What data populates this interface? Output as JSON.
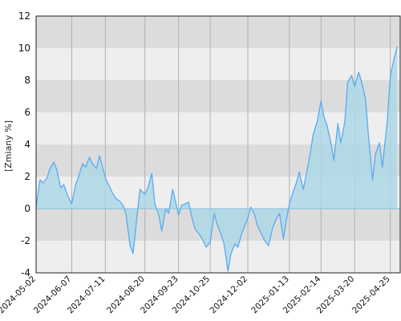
{
  "chart_data": {
    "type": "area",
    "ylabel": "[Zmiany %]",
    "ylim": [
      -4,
      12
    ],
    "yticks": [
      12,
      10,
      8,
      6,
      4,
      2,
      0,
      -2,
      -4
    ],
    "xlim": [
      "2024-05-02",
      "2025-05-05"
    ],
    "xticks": [
      "2024-05-02",
      "2024-06-07",
      "2024-07-11",
      "2024-08-20",
      "2024-09-23",
      "2024-10-25",
      "2024-12-02",
      "2025-01-13",
      "2025-02-14",
      "2025-03-20",
      "2025-04-25"
    ],
    "grid": true,
    "legend": "none",
    "colors": {
      "line": "#5aaaf0",
      "fill": "#add8e6",
      "band_dark": "#dcdcdc",
      "band_light": "#eeeeee",
      "gridline": "#b0b0b0",
      "zero": "#7fbfe0"
    },
    "series": [
      {
        "x": [
          "2024-05-02",
          "2024-05-06",
          "2024-05-09",
          "2024-05-13",
          "2024-05-16",
          "2024-05-20",
          "2024-05-23",
          "2024-05-27",
          "2024-05-30",
          "2024-06-03",
          "2024-06-07",
          "2024-06-11",
          "2024-06-14",
          "2024-06-18",
          "2024-06-21",
          "2024-06-25",
          "2024-06-28",
          "2024-07-02",
          "2024-07-05",
          "2024-07-09",
          "2024-07-11",
          "2024-07-15",
          "2024-07-18",
          "2024-07-22",
          "2024-07-25",
          "2024-07-29",
          "2024-08-01",
          "2024-08-05",
          "2024-08-08",
          "2024-08-12",
          "2024-08-15",
          "2024-08-20",
          "2024-08-23",
          "2024-08-27",
          "2024-08-30",
          "2024-09-03",
          "2024-09-06",
          "2024-09-10",
          "2024-09-13",
          "2024-09-17",
          "2024-09-20",
          "2024-09-23",
          "2024-09-26",
          "2024-09-30",
          "2024-10-03",
          "2024-10-07",
          "2024-10-10",
          "2024-10-14",
          "2024-10-17",
          "2024-10-21",
          "2024-10-25",
          "2024-10-29",
          "2024-11-01",
          "2024-11-05",
          "2024-11-08",
          "2024-11-12",
          "2024-11-15",
          "2024-11-19",
          "2024-11-22",
          "2024-11-26",
          "2024-12-02",
          "2024-12-05",
          "2024-12-09",
          "2024-12-12",
          "2024-12-16",
          "2024-12-19",
          "2024-12-23",
          "2024-12-27",
          "2024-12-31",
          "2025-01-03",
          "2025-01-07",
          "2025-01-10",
          "2025-01-13",
          "2025-01-16",
          "2025-01-20",
          "2025-01-23",
          "2025-01-27",
          "2025-01-30",
          "2025-02-03",
          "2025-02-06",
          "2025-02-10",
          "2025-02-14",
          "2025-02-17",
          "2025-02-20",
          "2025-02-24",
          "2025-02-27",
          "2025-03-03",
          "2025-03-06",
          "2025-03-10",
          "2025-03-13",
          "2025-03-17",
          "2025-03-20",
          "2025-03-24",
          "2025-03-27",
          "2025-03-31",
          "2025-04-03",
          "2025-04-07",
          "2025-04-10",
          "2025-04-14",
          "2025-04-17",
          "2025-04-22",
          "2025-04-25",
          "2025-04-29",
          "2025-05-02"
        ],
        "y": [
          0.1,
          1.8,
          1.6,
          1.9,
          2.5,
          2.9,
          2.4,
          1.3,
          1.5,
          0.8,
          0.3,
          1.5,
          2.0,
          2.8,
          2.6,
          3.2,
          2.8,
          2.5,
          3.3,
          2.4,
          1.9,
          1.4,
          1.0,
          0.6,
          0.5,
          0.2,
          -0.4,
          -2.3,
          -2.8,
          -0.5,
          1.2,
          0.9,
          1.3,
          2.2,
          0.3,
          -0.4,
          -1.4,
          0.0,
          -0.3,
          1.2,
          0.4,
          -0.4,
          0.2,
          0.3,
          0.4,
          -0.7,
          -1.3,
          -1.6,
          -1.9,
          -2.4,
          -2.1,
          -0.3,
          -1.0,
          -1.6,
          -2.2,
          -3.9,
          -2.8,
          -2.2,
          -2.4,
          -1.5,
          -0.6,
          0.1,
          -0.4,
          -1.1,
          -1.6,
          -2.0,
          -2.3,
          -1.2,
          -0.6,
          -0.3,
          -1.9,
          -0.7,
          0.3,
          0.9,
          1.6,
          2.3,
          1.2,
          2.1,
          3.4,
          4.6,
          5.4,
          6.7,
          5.7,
          5.2,
          4.1,
          3.0,
          5.3,
          4.1,
          5.4,
          7.9,
          8.3,
          7.6,
          8.5,
          7.9,
          6.8,
          4.5,
          1.8,
          3.4,
          4.1,
          2.6,
          5.5,
          8.3,
          9.4,
          10.1
        ]
      }
    ]
  }
}
